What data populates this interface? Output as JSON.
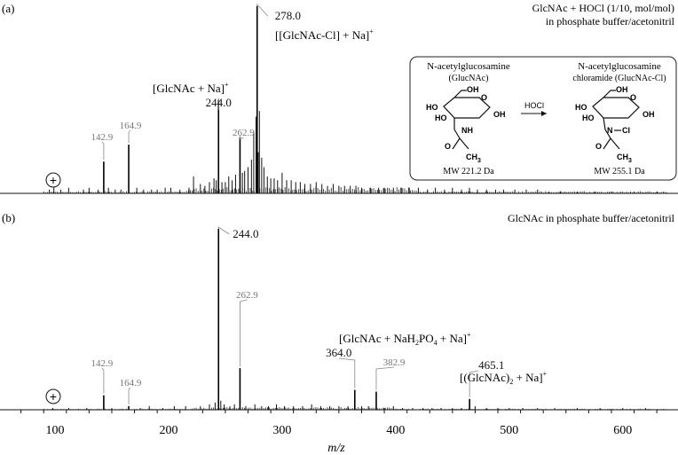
{
  "chart_data": [
    {
      "type": "line",
      "panel_label": "(a)",
      "title": "GlcNAc  + HOCl (1/10, mol/mol)",
      "subtitle": "in phosphate buffer/acetonitril",
      "xlabel": "m/z",
      "xlim": [
        50,
        650
      ],
      "peaks": [
        {
          "x": 142.9,
          "y": 0.17,
          "label": "142.9",
          "gray": true
        },
        {
          "x": 164.9,
          "y": 0.26,
          "label": "164.9",
          "gray": true
        },
        {
          "x": 244.0,
          "y": 0.5,
          "label": "244.0",
          "ion": "[GlcNAc + Na]",
          "ion_sup": "+"
        },
        {
          "x": 262.9,
          "y": 0.3,
          "label": "262.9",
          "gray": true
        },
        {
          "x": 278.0,
          "y": 1.0,
          "label": "278.0",
          "ion": "[[GlcNAc-Cl] + Na]",
          "ion_sup": "+"
        }
      ],
      "minor_peaks": [
        [
          40,
          0.02
        ],
        [
          95,
          0.02
        ],
        [
          99,
          0.03
        ],
        [
          105,
          0.02
        ],
        [
          112,
          0.03
        ],
        [
          125,
          0.02
        ],
        [
          130,
          0.03
        ],
        [
          138,
          0.02
        ],
        [
          147,
          0.03
        ],
        [
          153,
          0.02
        ],
        [
          158,
          0.02
        ],
        [
          172,
          0.03
        ],
        [
          178,
          0.02
        ],
        [
          185,
          0.02
        ],
        [
          190,
          0.02
        ],
        [
          197,
          0.03
        ],
        [
          202,
          0.03
        ],
        [
          210,
          0.02
        ],
        [
          218,
          0.03
        ],
        [
          222,
          0.09
        ],
        [
          228,
          0.05
        ],
        [
          232,
          0.04
        ],
        [
          236,
          0.06
        ],
        [
          240,
          0.08
        ],
        [
          242,
          0.07
        ],
        [
          247,
          0.06
        ],
        [
          250,
          0.06
        ],
        [
          253,
          0.09
        ],
        [
          256,
          0.07
        ],
        [
          259,
          0.1
        ],
        [
          265,
          0.11
        ],
        [
          267,
          0.12
        ],
        [
          270,
          0.14
        ],
        [
          273,
          0.18
        ],
        [
          275,
          0.33
        ],
        [
          277,
          0.41
        ],
        [
          279,
          0.22
        ],
        [
          280,
          0.44
        ],
        [
          282,
          0.19
        ],
        [
          284,
          0.14
        ],
        [
          287,
          0.09
        ],
        [
          290,
          0.08
        ],
        [
          293,
          0.08
        ],
        [
          296,
          0.07
        ],
        [
          300,
          0.11
        ],
        [
          304,
          0.07
        ],
        [
          308,
          0.07
        ],
        [
          312,
          0.06
        ],
        [
          316,
          0.06
        ],
        [
          320,
          0.05
        ],
        [
          325,
          0.05
        ],
        [
          330,
          0.06
        ],
        [
          335,
          0.05
        ],
        [
          340,
          0.04
        ],
        [
          345,
          0.05
        ],
        [
          350,
          0.04
        ],
        [
          355,
          0.04
        ],
        [
          360,
          0.04
        ],
        [
          365,
          0.04
        ],
        [
          370,
          0.03
        ],
        [
          378,
          0.03
        ],
        [
          385,
          0.03
        ],
        [
          390,
          0.03
        ],
        [
          398,
          0.03
        ],
        [
          405,
          0.03
        ],
        [
          412,
          0.03
        ],
        [
          420,
          0.03
        ],
        [
          428,
          0.02
        ],
        [
          435,
          0.03
        ],
        [
          443,
          0.02
        ],
        [
          450,
          0.03
        ],
        [
          458,
          0.02
        ],
        [
          465,
          0.03
        ],
        [
          472,
          0.02
        ],
        [
          480,
          0.02
        ],
        [
          488,
          0.02
        ],
        [
          495,
          0.02
        ],
        [
          505,
          0.02
        ],
        [
          515,
          0.02
        ],
        [
          525,
          0.02
        ],
        [
          535,
          0.01
        ],
        [
          545,
          0.01
        ],
        [
          560,
          0.01
        ],
        [
          575,
          0.01
        ],
        [
          590,
          0.01
        ],
        [
          610,
          0.01
        ],
        [
          630,
          0.01
        ]
      ]
    },
    {
      "type": "line",
      "panel_label": "(b)",
      "title": "GlcNAc in phosphate buffer/acetonitril",
      "xlabel": "m/z",
      "xlim": [
        50,
        650
      ],
      "xticks": [
        100,
        200,
        300,
        400,
        500,
        600
      ],
      "peaks": [
        {
          "x": 142.9,
          "y": 0.08,
          "label": "142.9",
          "gray": true
        },
        {
          "x": 164.9,
          "y": 0.02,
          "label": "164.9",
          "gray": true
        },
        {
          "x": 244.0,
          "y": 1.0,
          "label": "244.0"
        },
        {
          "x": 262.9,
          "y": 0.23,
          "label": "262.9",
          "gray": true
        },
        {
          "x": 364.0,
          "y": 0.11,
          "label": "364.0",
          "ion": "[GlcNAc + NaH2PO4 + Na]",
          "ion_sup": "+"
        },
        {
          "x": 382.9,
          "y": 0.1,
          "label": "382.9",
          "gray": true
        },
        {
          "x": 465.1,
          "y": 0.06,
          "label": "465.1",
          "ion": "[(GlcNAc)2 + Na]",
          "ion_sup": "+"
        }
      ],
      "minor_peaks": [
        [
          98,
          0.01
        ],
        [
          112,
          0.01
        ],
        [
          128,
          0.01
        ],
        [
          150,
          0.01
        ],
        [
          175,
          0.01
        ],
        [
          183,
          0.02
        ],
        [
          195,
          0.01
        ],
        [
          205,
          0.02
        ],
        [
          215,
          0.02
        ],
        [
          228,
          0.02
        ],
        [
          236,
          0.03
        ],
        [
          241,
          0.04
        ],
        [
          246,
          0.05
        ],
        [
          249,
          0.03
        ],
        [
          254,
          0.02
        ],
        [
          258,
          0.03
        ],
        [
          268,
          0.02
        ],
        [
          276,
          0.03
        ],
        [
          282,
          0.02
        ],
        [
          288,
          0.02
        ],
        [
          295,
          0.03
        ],
        [
          302,
          0.02
        ],
        [
          310,
          0.02
        ],
        [
          318,
          0.02
        ],
        [
          326,
          0.03
        ],
        [
          334,
          0.02
        ],
        [
          342,
          0.02
        ],
        [
          350,
          0.02
        ],
        [
          358,
          0.02
        ],
        [
          370,
          0.02
        ],
        [
          376,
          0.02
        ],
        [
          390,
          0.01
        ],
        [
          398,
          0.02
        ],
        [
          406,
          0.01
        ],
        [
          415,
          0.01
        ],
        [
          424,
          0.01
        ],
        [
          432,
          0.01
        ],
        [
          440,
          0.01
        ],
        [
          450,
          0.01
        ],
        [
          458,
          0.01
        ],
        [
          470,
          0.02
        ],
        [
          480,
          0.01
        ],
        [
          490,
          0.01
        ],
        [
          500,
          0.01
        ],
        [
          512,
          0.01
        ],
        [
          525,
          0.01
        ],
        [
          540,
          0.01
        ],
        [
          560,
          0.01
        ],
        [
          580,
          0.01
        ],
        [
          600,
          0.01
        ],
        [
          620,
          0.01
        ]
      ]
    }
  ],
  "inset": {
    "reactant_name": "N-acetylglucosamine",
    "reactant_abbr": "(GlucNAc)",
    "product_name": "N-acetylglucosamine",
    "product_abbr": "chloramide (GlucNAc-Cl)",
    "reagent": "HOCl",
    "reactant_mw": "MW 221.2 Da",
    "product_mw": "MW 255.1 Da",
    "atoms": {
      "ho": "HO",
      "oh": "OH",
      "o": "O",
      "nh": "NH",
      "n": "N",
      "cl": "Cl",
      "ch3": "CH",
      "ch3_sub": "3"
    }
  },
  "polarity": "+"
}
